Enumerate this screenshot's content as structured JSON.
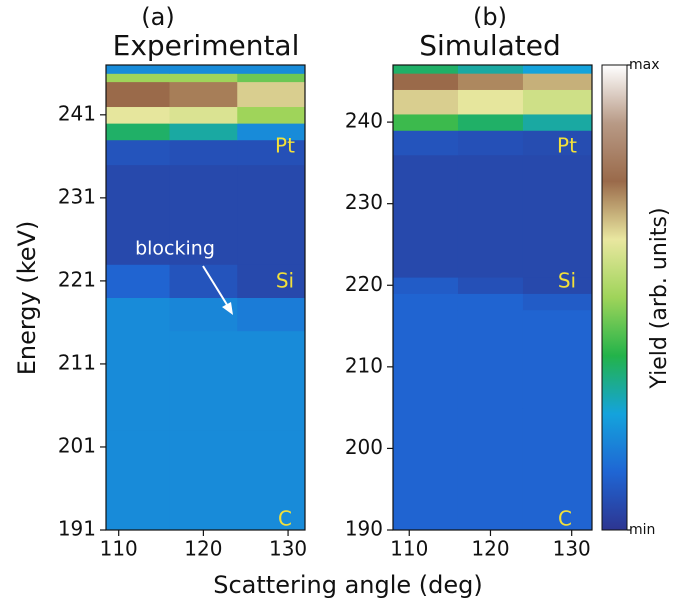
{
  "chart_data": [
    {
      "type": "heatmap",
      "label": "(a)",
      "title": "Experimental",
      "ylabel": "Energy (keV)",
      "xlabel": "Scattering angle (deg)",
      "xlim": [
        108.5,
        132
      ],
      "xticks": [
        110,
        120,
        130
      ],
      "ylim": [
        191,
        247
      ],
      "yticks": [
        191,
        201,
        211,
        221,
        231,
        241
      ],
      "xbins": [
        108.5,
        116,
        124,
        132
      ],
      "ybins": [
        191,
        203,
        215,
        219,
        223,
        235,
        238,
        240,
        242,
        245,
        246,
        247
      ],
      "z": [
        [
          0.2,
          0.2,
          0.2
        ],
        [
          0.2,
          0.2,
          0.2
        ],
        [
          0.2,
          0.19,
          0.17
        ],
        [
          0.12,
          0.08,
          0.05
        ],
        [
          0.05,
          0.05,
          0.05
        ],
        [
          0.08,
          0.07,
          0.07
        ],
        [
          0.35,
          0.3,
          0.2
        ],
        [
          0.62,
          0.6,
          0.5
        ],
        [
          0.75,
          0.73,
          0.65
        ],
        [
          0.5,
          0.5,
          0.45
        ],
        [
          0.2,
          0.2,
          0.2
        ]
      ],
      "annotations": [
        "Pt",
        "Si",
        "C",
        "blocking"
      ]
    },
    {
      "type": "heatmap",
      "label": "(b)",
      "title": "Simulated",
      "xlim": [
        108,
        132.5
      ],
      "xticks": [
        110,
        120,
        130
      ],
      "ylim": [
        190,
        247
      ],
      "yticks": [
        190,
        200,
        210,
        220,
        230,
        240
      ],
      "xbins": [
        108,
        116,
        124,
        132.5
      ],
      "ybins": [
        190,
        205,
        217,
        219,
        221,
        236,
        239,
        241,
        244,
        246,
        247
      ],
      "z": [
        [
          0.12,
          0.12,
          0.12
        ],
        [
          0.12,
          0.12,
          0.12
        ],
        [
          0.12,
          0.12,
          0.1
        ],
        [
          0.1,
          0.07,
          0.05
        ],
        [
          0.05,
          0.05,
          0.05
        ],
        [
          0.08,
          0.07,
          0.06
        ],
        [
          0.4,
          0.35,
          0.3
        ],
        [
          0.65,
          0.62,
          0.58
        ],
        [
          0.75,
          0.72,
          0.68
        ],
        [
          0.35,
          0.3,
          0.25
        ]
      ],
      "annotations": [
        "Pt",
        "Si",
        "C"
      ]
    },
    {
      "type": "colorbar",
      "label": "Yield (arb. units)",
      "zlim": [
        0,
        1
      ],
      "zticks": [
        {
          "value": 0,
          "label": "min"
        },
        {
          "value": 1,
          "label": "max"
        }
      ],
      "colormap": [
        "#2d3591",
        "#1f66d4",
        "#14a3dc",
        "#23b34a",
        "#9fd45a",
        "#e9e7a0",
        "#9a6a4a",
        "#b89a86",
        "#ffffff"
      ]
    }
  ]
}
